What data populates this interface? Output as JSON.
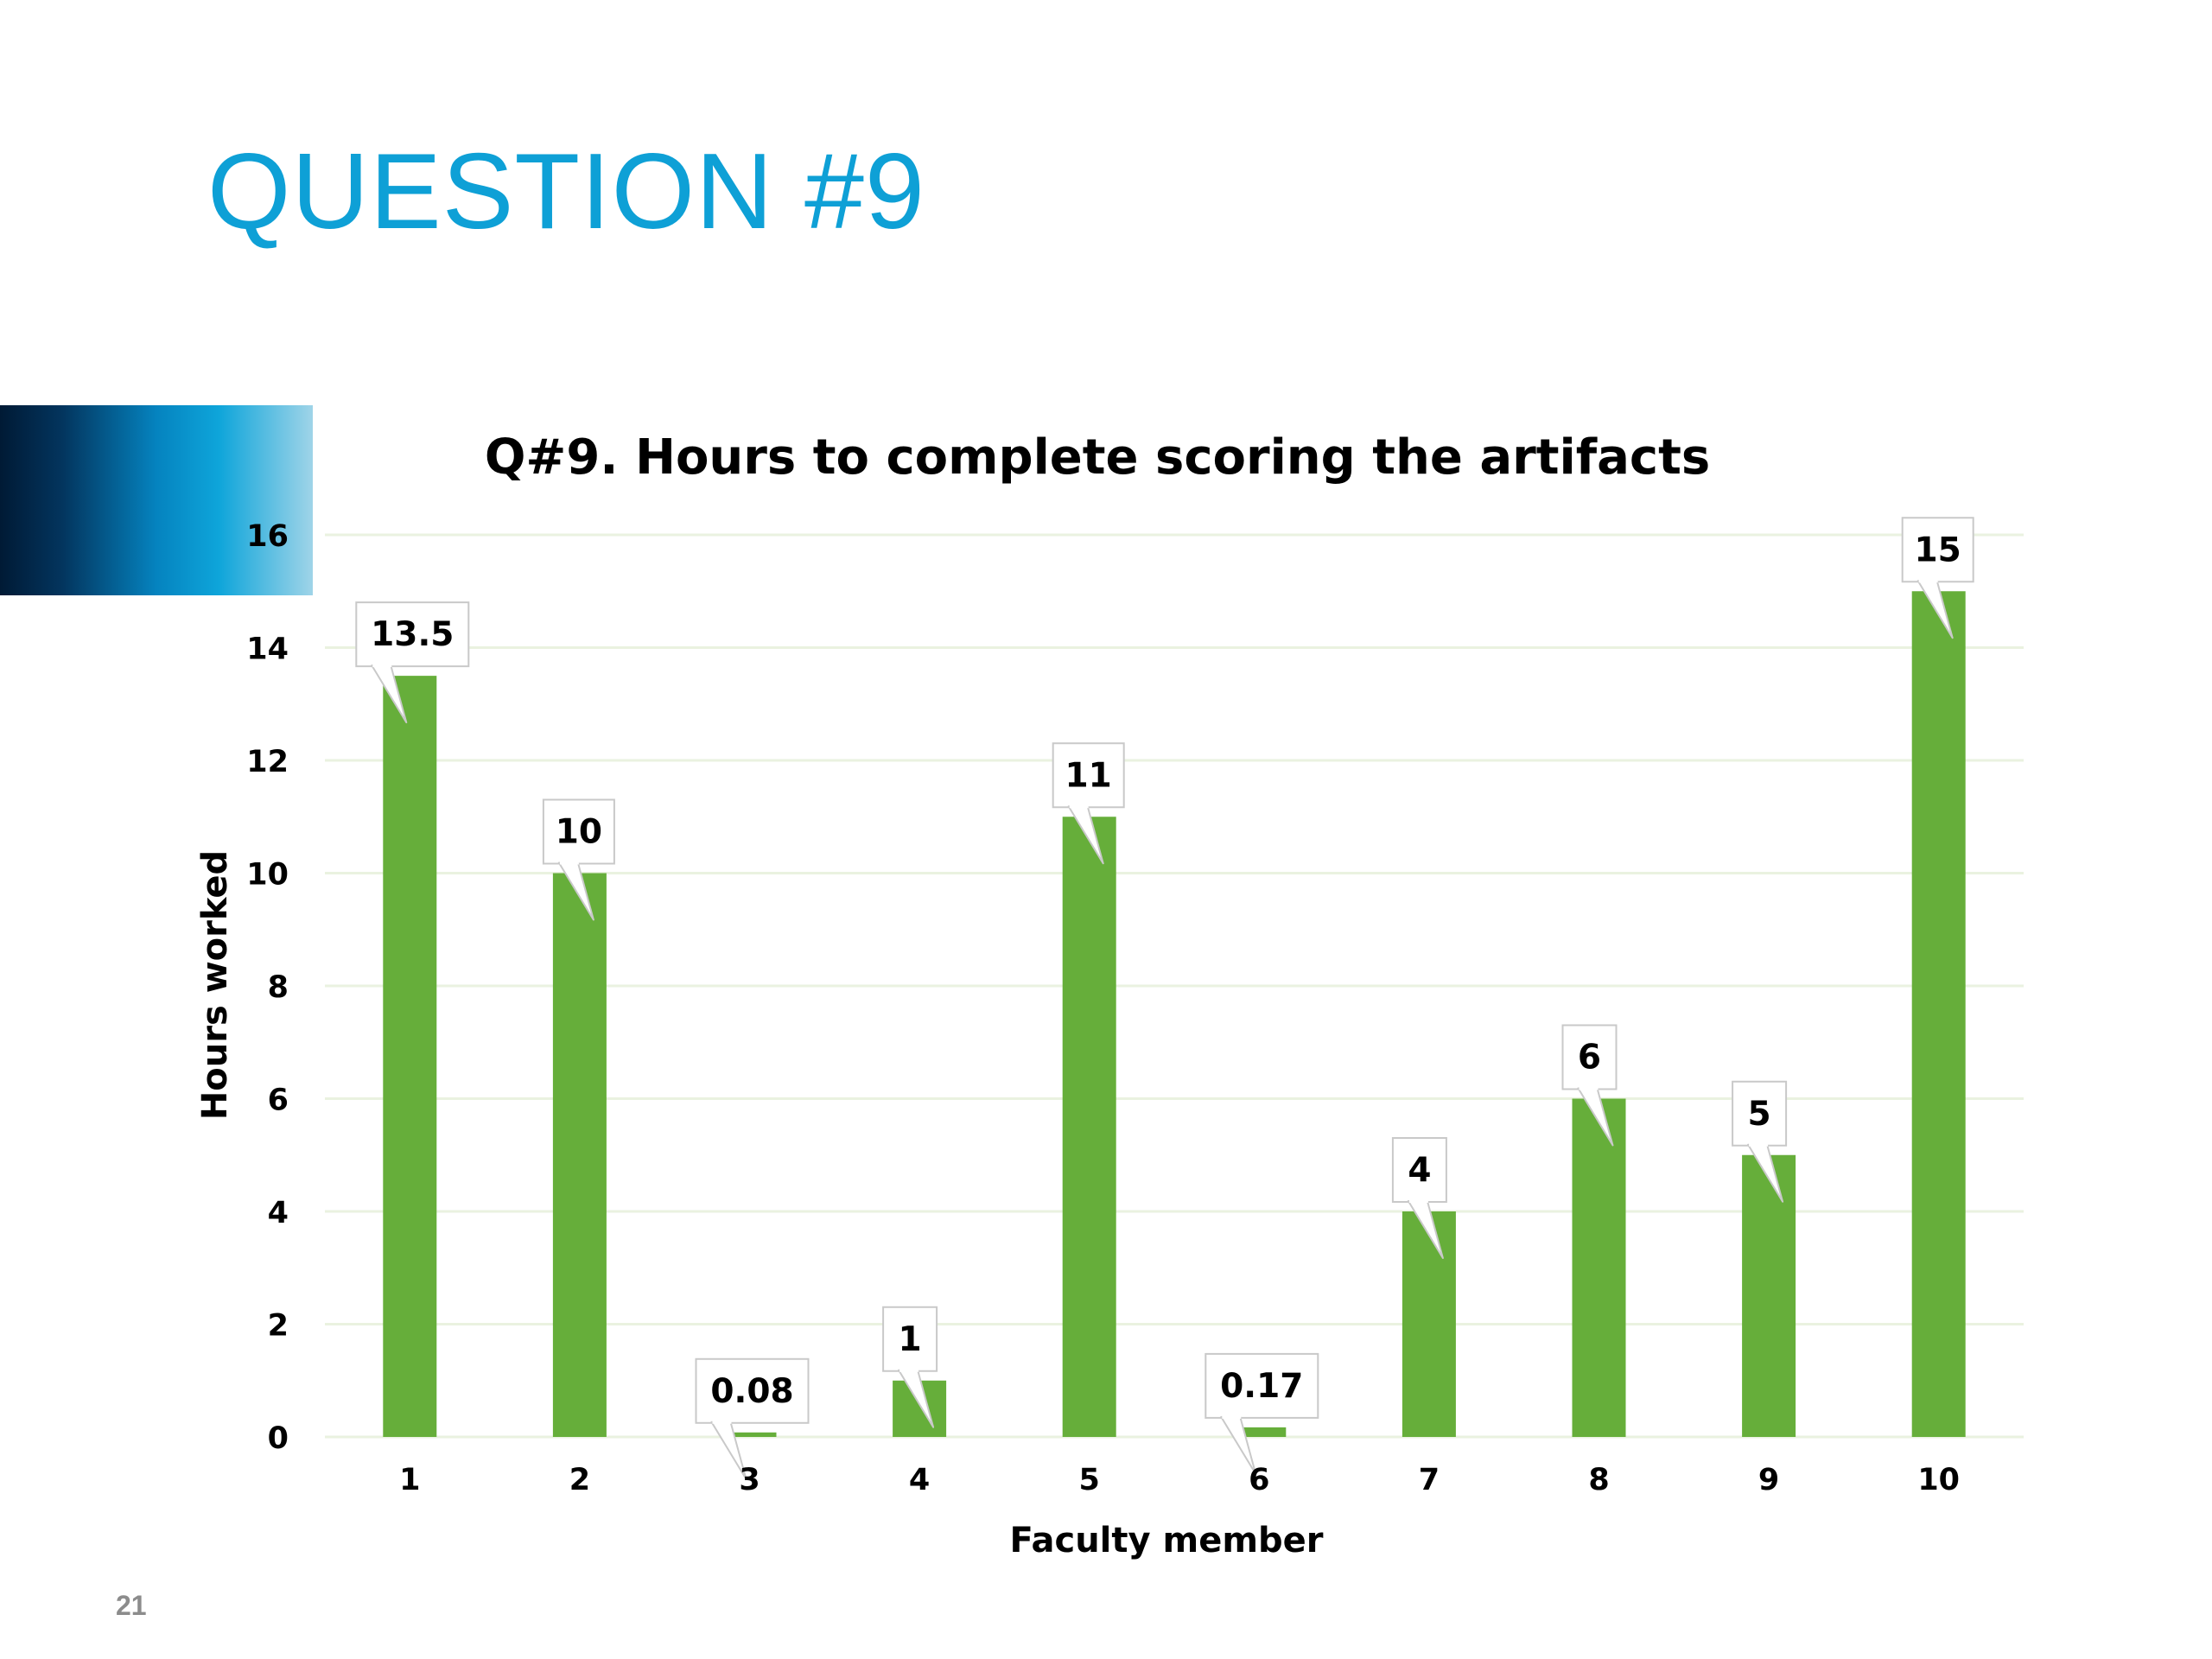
{
  "slide": {
    "title": "QUESTION #9",
    "page_number": "21"
  },
  "colors": {
    "title": "#0ea0d6",
    "bar": "#66ae3a",
    "gridline": "#eaf2e0",
    "page_number": "#8c8c8c"
  },
  "chart_data": {
    "type": "bar",
    "title": "Q#9. Hours to complete scoring the artifacts",
    "xlabel": "Faculty member",
    "ylabel": "Hours worked",
    "categories": [
      "1",
      "2",
      "3",
      "4",
      "5",
      "6",
      "7",
      "8",
      "9",
      "10"
    ],
    "values": [
      13.5,
      10,
      0.08,
      1,
      11,
      0.17,
      4,
      6,
      5,
      15
    ],
    "data_labels": [
      "13.5",
      "10",
      "0.08",
      "1",
      "11",
      "0.17",
      "4",
      "6",
      "5",
      "15"
    ],
    "ylim": [
      0,
      16
    ],
    "yticks": [
      "0",
      "2",
      "4",
      "6",
      "8",
      "10",
      "12",
      "14",
      "16"
    ],
    "grid": true,
    "legend": "none"
  }
}
